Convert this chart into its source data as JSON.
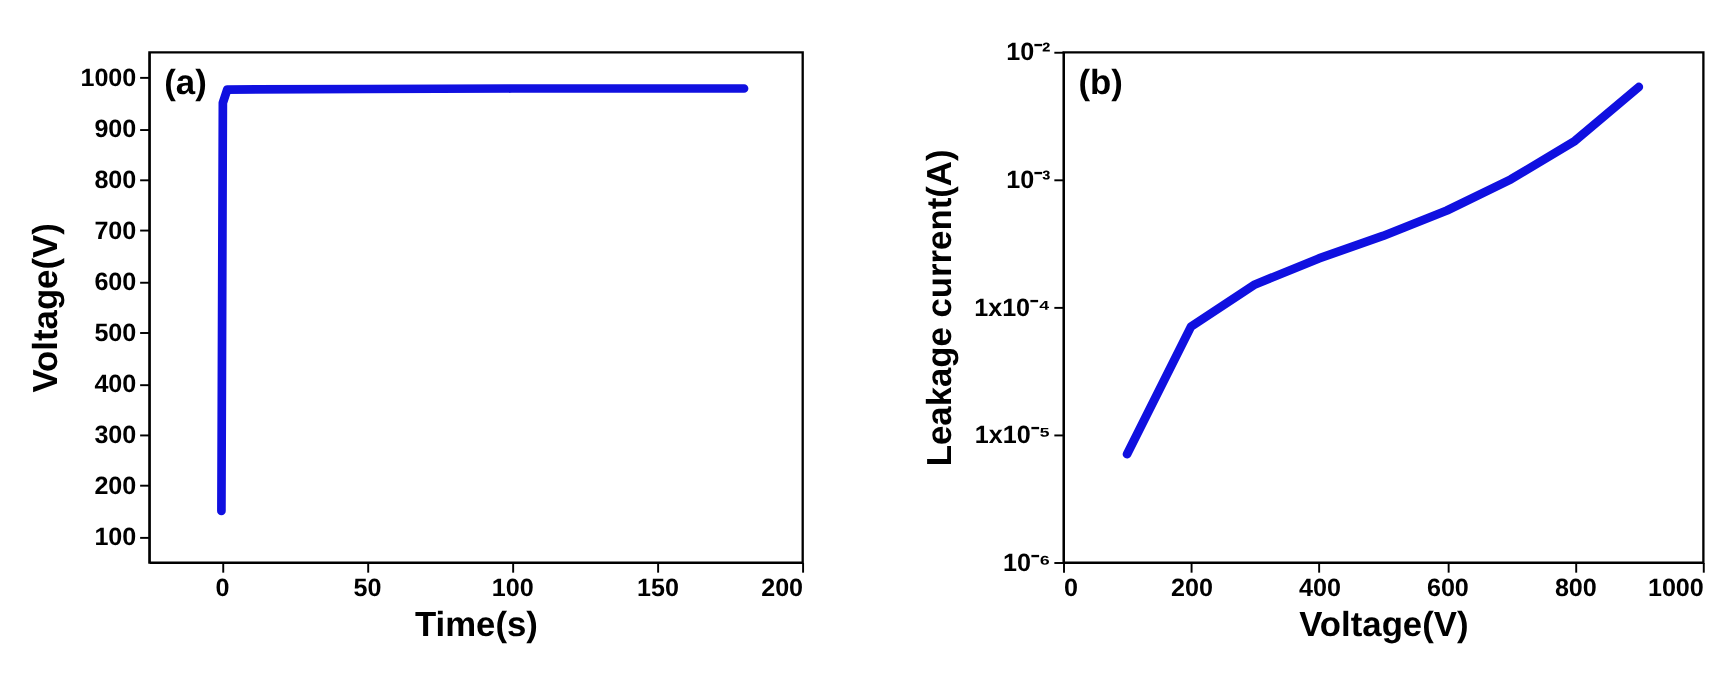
{
  "chart_data": [
    {
      "type": "line",
      "xlabel": "Time(s)",
      "ylabel": "Voltage(V)",
      "annotations": [
        "(a)"
      ],
      "series": [
        {
          "color": "#1010e0",
          "x": [
            0,
            0.5,
            2,
            50,
            100,
            180
          ],
          "values": [
            150,
            950,
            976,
            977,
            978,
            978
          ]
        }
      ],
      "xlim": [
        -25,
        200
      ],
      "xticks": [
        0,
        50,
        100,
        150,
        200
      ],
      "ylim": [
        50,
        1050
      ],
      "yticks": [
        100,
        200,
        300,
        400,
        500,
        600,
        700,
        800,
        900,
        1000
      ],
      "grid": false
    },
    {
      "type": "line",
      "xlabel": "Voltage(V)",
      "ylabel": "Leakage current(A)",
      "annotations": [
        "(b)"
      ],
      "log": "y",
      "series": [
        {
          "color": "#1010e0",
          "x": [
            100,
            200,
            300,
            400,
            500,
            600,
            700,
            800,
            900
          ],
          "values": [
            7e-06,
            7e-05,
            0.00015,
            0.00024,
            0.00036,
            0.00057,
            0.001,
            0.002,
            0.0053
          ]
        }
      ],
      "xlim": [
        0,
        1000
      ],
      "xticks": [
        0,
        200,
        400,
        600,
        800,
        1000
      ],
      "ylim": [
        1e-06,
        0.01
      ],
      "yticks": [
        {
          "value": 1e-06,
          "label": "10⁻⁶"
        },
        {
          "value": 1e-05,
          "label": "1x10⁻⁵"
        },
        {
          "value": 0.0001,
          "label": "1x10⁻⁴"
        },
        {
          "value": 0.001,
          "label": "10⁻³"
        },
        {
          "value": 0.01,
          "label": "10⁻²"
        }
      ],
      "grid": false
    }
  ]
}
